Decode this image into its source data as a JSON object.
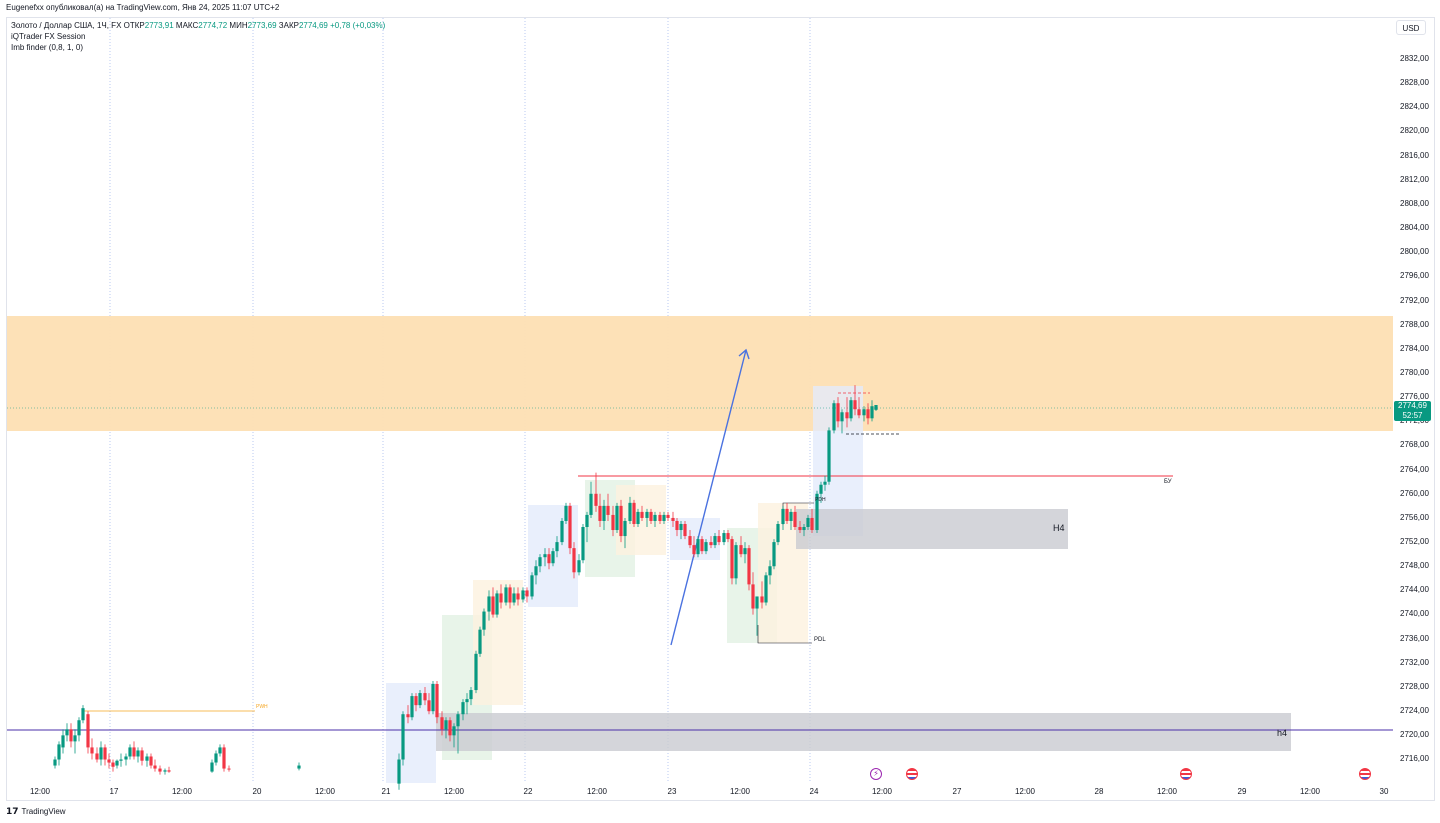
{
  "header": {
    "published_text": "Eugenefxx опубликовал(а) на TradingView.com, Янв 24, 2025 11:07 UTC+2"
  },
  "legend": {
    "symbol": "Золото / Доллар США, 1Ч, FX",
    "open_label": "ОТКР",
    "open_value": "2773,91",
    "high_label": "МАКС",
    "high_value": "2774,72",
    "low_label": "МИН",
    "low_value": "2773,69",
    "close_label": "ЗАКР",
    "close_value": "2774,69",
    "change": "+0,78 (+0,03%)",
    "indicator_1": "iQTrader FX Session",
    "indicator_2": "Imb finder (0,8, 1, 0)"
  },
  "currency_button": "USD",
  "current_price": {
    "price": "2774,69",
    "countdown": "52:57"
  },
  "price_axis": [
    "2832,00",
    "2828,00",
    "2824,00",
    "2820,00",
    "2816,00",
    "2812,00",
    "2808,00",
    "2804,00",
    "2800,00",
    "2796,00",
    "2792,00",
    "2788,00",
    "2784,00",
    "2780,00",
    "2776,00",
    "2772,00",
    "2768,00",
    "2764,00",
    "2760,00",
    "2756,00",
    "2752,00",
    "2748,00",
    "2744,00",
    "2740,00",
    "2736,00",
    "2732,00",
    "2728,00",
    "2724,00",
    "2720,00",
    "2716,00"
  ],
  "time_axis": [
    "12:00",
    "17",
    "12:00",
    "20",
    "12:00",
    "21",
    "12:00",
    "22",
    "12:00",
    "23",
    "12:00",
    "24",
    "12:00",
    "27",
    "12:00",
    "28",
    "12:00",
    "29",
    "12:00",
    "30"
  ],
  "annotations": {
    "zone_h4_upper": "H4",
    "zone_h4_lower": "h4",
    "bu_label": "БУ",
    "pdl_label": "PDL",
    "pwh_label": "PWH",
    "pdh_label": "PDH"
  },
  "footer": {
    "brand": "TradingView"
  },
  "colors": {
    "bull": "#089981",
    "bear": "#f23645",
    "resistance_zone": "#fddfb3",
    "demand_zone": "#d3d4da",
    "level_red": "#f23645",
    "level_purple": "#4a2fa8",
    "arrow": "#4a72e0"
  },
  "icons": {
    "footer_logo": "tradingview-logo-icon",
    "event_1": "lightning-event-icon",
    "event_flag": "usa-flag-icon"
  }
}
